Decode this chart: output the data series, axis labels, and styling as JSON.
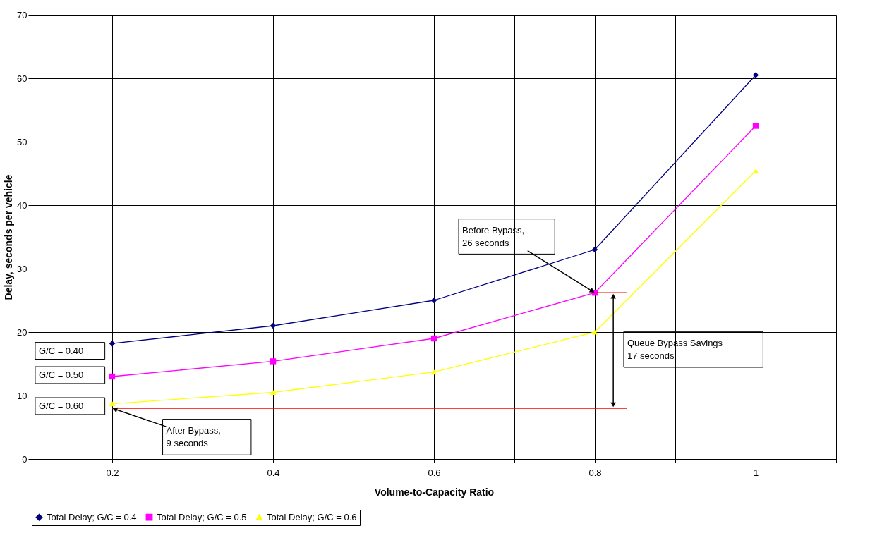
{
  "chart_data": {
    "type": "line",
    "xlabel": "Volume-to-Capacity Ratio",
    "ylabel": "Delay, seconds per vehicle",
    "xlim": [
      0.1,
      1.1
    ],
    "xticks": [
      {
        "value": 0.1,
        "label": null
      },
      0.2,
      {
        "value": 0.3,
        "label": null
      },
      0.4,
      {
        "value": 0.5,
        "label": null
      },
      0.6,
      {
        "value": 0.7,
        "label": null
      },
      0.8,
      {
        "value": 0.9,
        "label": null
      },
      1,
      {
        "value": 1.1,
        "label": null
      }
    ],
    "ylim": [
      0,
      70
    ],
    "yticks": [
      0,
      10,
      20,
      30,
      40,
      50,
      60,
      70
    ],
    "grid": true,
    "legend": "bottom",
    "line_style": "solid",
    "x": [
      0.2,
      0.4,
      0.6,
      0.8,
      1
    ],
    "series": [
      {
        "name": "Total Delay; G/C = 0.4",
        "color": "#000080",
        "marker": "diamond",
        "values": [
          18.2,
          21,
          25,
          33,
          60.5
        ]
      },
      {
        "name": "Total Delay; G/C = 0.5",
        "color": "#ff00ff",
        "marker": "square",
        "values": [
          13,
          15.4,
          19,
          26.2,
          52.5
        ]
      },
      {
        "name": "Total Delay; G/C = 0.6",
        "color": "#ffff00",
        "marker": "triangle",
        "values": [
          8.7,
          10.5,
          13.7,
          20,
          45.4
        ]
      },
      {
        "type": "line",
        "color": "#ff0000",
        "x": [
          0.8,
          0.84
        ],
        "values": [
          26.2,
          26.2
        ]
      },
      {
        "type": "line",
        "color": "#ff0000",
        "x": [
          0.2,
          0.84
        ],
        "values": [
          8,
          8
        ]
      }
    ],
    "annotations": [
      "G/C = 0.40",
      "G/C = 0.50",
      "G/C = 0.60",
      {
        "text": "Before Bypass,\n26 seconds",
        "x": 0.8,
        "y": 26.2
      },
      {
        "text": "After Bypass,\n9 seconds",
        "x": 0.2,
        "y": 8
      },
      "Queue Bypass Savings\n17 seconds"
    ]
  }
}
